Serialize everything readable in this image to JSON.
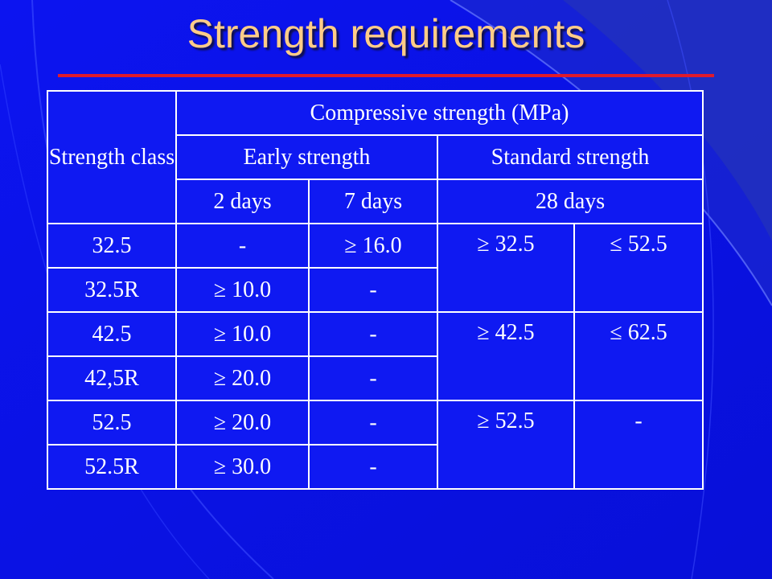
{
  "slide": {
    "title": "Strength requirements",
    "colors": {
      "background": "#0a10e8",
      "title": "#ffcc88",
      "rule": "#e01a2c",
      "table_line": "#ffffff"
    }
  },
  "table": {
    "header": {
      "strength_class": "Strength class",
      "compressive": "Compressive strength (MPa)",
      "early": "Early strength",
      "standard": "Standard strength",
      "day2": "2 days",
      "day7": "7 days",
      "day28": "28 days"
    },
    "rows": [
      {
        "class": "32.5",
        "d2": "-",
        "d7": "≥ 16.0"
      },
      {
        "class": "32.5R",
        "d2": "≥ 10.0",
        "d7": "-"
      },
      {
        "class": "42.5",
        "d2": "≥ 10.0",
        "d7": "-"
      },
      {
        "class": "42,5R",
        "d2": "≥ 20.0",
        "d7": "-"
      },
      {
        "class": "52.5",
        "d2": "≥ 20.0",
        "d7": "-"
      },
      {
        "class": "52.5R",
        "d2": "≥ 30.0",
        "d7": "-"
      }
    ],
    "groups": [
      {
        "min28": "≥ 32.5",
        "max28": "≤ 52.5"
      },
      {
        "min28": "≥ 42.5",
        "max28": "≤ 62.5"
      },
      {
        "min28": "≥ 52.5",
        "max28": "-"
      }
    ]
  }
}
